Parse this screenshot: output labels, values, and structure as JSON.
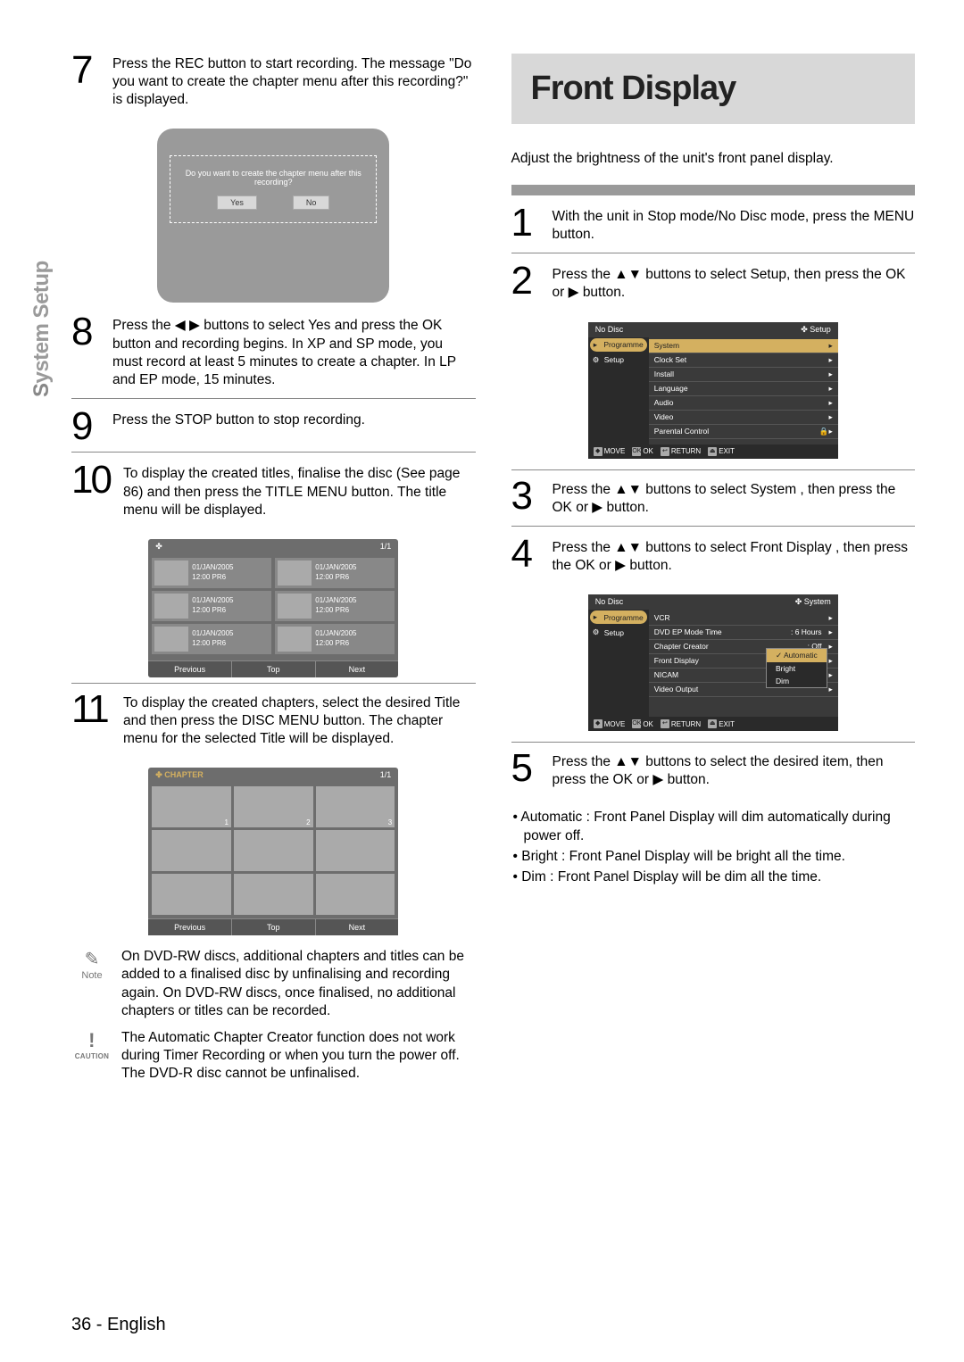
{
  "sideTab": "System Setup",
  "pageNumber": "36 - English",
  "left": {
    "steps": {
      "s7": {
        "num": "7",
        "text": "Press the REC button to start recording.\nThe message \"Do you want to create the chapter menu after this recording?\" is displayed."
      },
      "s8": {
        "num": "8",
        "text": "Press the ◀ ▶ buttons to select Yes and press the OK button and recording begins.\nIn XP and SP mode, you must record at least 5 minutes to create a chapter. In LP and EP mode, 15 minutes."
      },
      "s9": {
        "num": "9",
        "text": "Press the STOP button to stop recording."
      },
      "s10": {
        "num": "10",
        "text": "To display the created titles, finalise the disc (See page 86) and then press the TITLE MENU button. The title menu will be displayed."
      },
      "s11": {
        "num": "11",
        "text": "To display the created chapters, select the desired Title and then press the DISC MENU button. The chapter menu for the selected Title will be displayed."
      }
    },
    "promptScreen": {
      "msg": "Do you want to create the chapter menu after this recording?",
      "yes": "Yes",
      "no": "No"
    },
    "titleMenu": {
      "header": {
        "left": "✤",
        "right": "1/1"
      },
      "cellDate": "01/JAN/2005",
      "cellTime": "12:00 PR6",
      "footer": [
        "Previous",
        "Top",
        "Next"
      ]
    },
    "chapterMenu": {
      "header": {
        "left": "✤ CHAPTER",
        "right": "1/1"
      },
      "cells": [
        "1",
        "2",
        "3",
        "",
        "",
        "",
        "",
        "",
        ""
      ],
      "footer": [
        "Previous",
        "Top",
        "Next"
      ]
    },
    "note": {
      "label": "Note",
      "text": "On DVD-RW discs, additional chapters and titles can be added to a finalised disc by unfinalising and recording again. On DVD-RW discs, once finalised, no additional chapters or titles can be recorded."
    },
    "caution": {
      "label": "CAUTION",
      "text": "The Automatic Chapter Creator function does not work during Timer Recording or when you turn the power off.\nThe DVD-R disc cannot be unfinalised."
    }
  },
  "right": {
    "title": "Front Display",
    "intro": "Adjust the brightness of the unit's front panel display.",
    "steps": {
      "s1": {
        "num": "1",
        "text": "With the unit in Stop mode/No Disc mode, press the MENU button."
      },
      "s2": {
        "num": "2",
        "text": "Press the ▲▼ buttons to select Setup, then press the OK or ▶ button."
      },
      "s3": {
        "num": "3",
        "text": "Press the ▲▼ buttons to select System , then press the OK or ▶ button."
      },
      "s4": {
        "num": "4",
        "text": "Press the  ▲▼ buttons to select Front Display , then press the OK or ▶ button."
      },
      "s5": {
        "num": "5",
        "text": "Press the ▲▼ buttons to select the desired item, then press the OK or ▶ button."
      }
    },
    "osd1": {
      "top": {
        "left": "No Disc",
        "right": "✤ Setup"
      },
      "side": [
        {
          "label": "Programme",
          "sel": true
        },
        {
          "label": "Setup",
          "sel": false,
          "gear": true
        }
      ],
      "items": [
        {
          "label": "System",
          "sel": true
        },
        {
          "label": "Clock Set"
        },
        {
          "label": "Install"
        },
        {
          "label": "Language"
        },
        {
          "label": "Audio"
        },
        {
          "label": "Video"
        },
        {
          "label": "Parental Control",
          "lock": true
        }
      ],
      "foot": [
        {
          "k": "◆",
          "t": "MOVE"
        },
        {
          "k": "OK",
          "t": "OK"
        },
        {
          "k": "↩",
          "t": "RETURN"
        },
        {
          "k": "⏏",
          "t": "EXIT"
        }
      ]
    },
    "osd2": {
      "top": {
        "left": "No Disc",
        "right": "✤ System"
      },
      "side": [
        {
          "label": "Programme",
          "sel": true
        },
        {
          "label": "Setup",
          "sel": false,
          "gear": true
        }
      ],
      "items": [
        {
          "label": "VCR"
        },
        {
          "label": "DVD EP Mode Time",
          "val": ": 6 Hours"
        },
        {
          "label": "Chapter Creator",
          "val": ": Off"
        },
        {
          "label": "Front Display"
        },
        {
          "label": "NICAM"
        },
        {
          "label": "Video Output"
        }
      ],
      "popup": [
        "Automatic",
        "Bright",
        "Dim"
      ],
      "foot": [
        {
          "k": "◆",
          "t": "MOVE"
        },
        {
          "k": "OK",
          "t": "OK"
        },
        {
          "k": "↩",
          "t": "RETURN"
        },
        {
          "k": "⏏",
          "t": "EXIT"
        }
      ]
    },
    "bullets": [
      "• Automatic  : Front Panel Display will dim automatically during power off.",
      "• Bright  : Front Panel Display will be bright all the time.",
      "• Dim : Front Panel Display will be dim all the time."
    ]
  }
}
